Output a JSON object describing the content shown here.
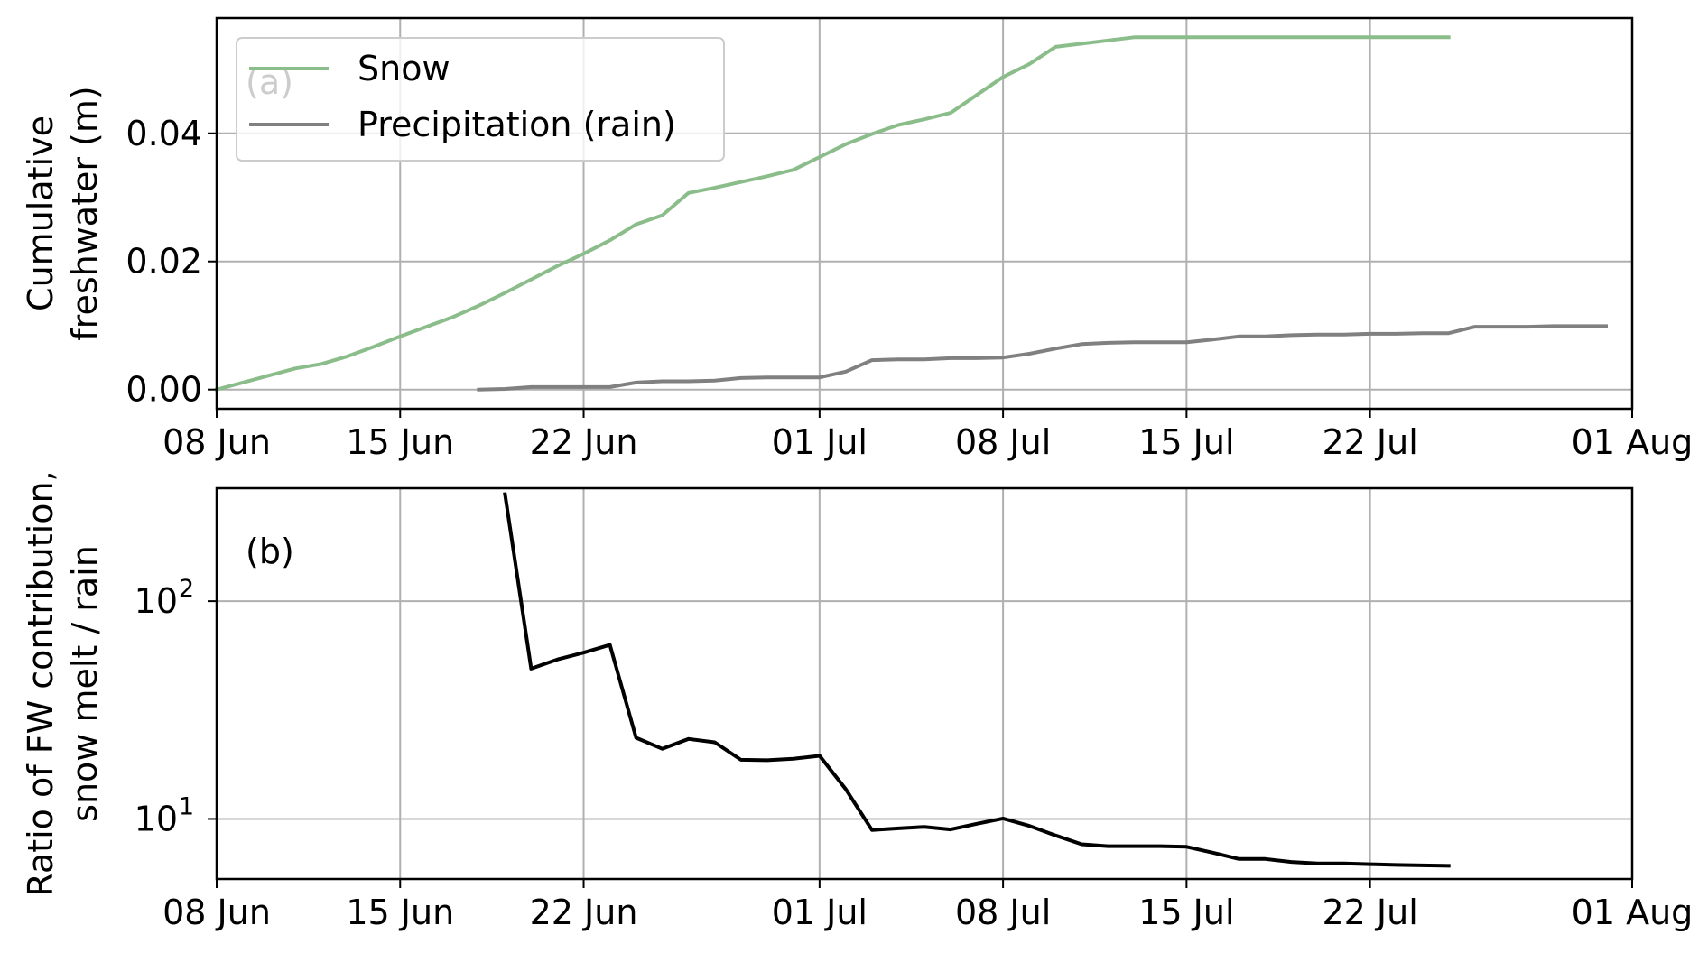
{
  "chart_data": [
    {
      "type": "line",
      "panel_label": "(a)",
      "title": "",
      "xlabel": "",
      "ylabel_lines": [
        "Cumulative",
        "freshwater (m)"
      ],
      "xlim": [
        "2019-06-08",
        "2019-08-01"
      ],
      "ylim": [
        -0.003,
        0.058
      ],
      "x_ticks": [
        {
          "date": "2019-06-08",
          "label": "08 Jun"
        },
        {
          "date": "2019-06-15",
          "label": "15 Jun"
        },
        {
          "date": "2019-06-22",
          "label": "22 Jun"
        },
        {
          "date": "2019-07-01",
          "label": "01 Jul"
        },
        {
          "date": "2019-07-08",
          "label": "08 Jul"
        },
        {
          "date": "2019-07-15",
          "label": "15 Jul"
        },
        {
          "date": "2019-07-22",
          "label": "22 Jul"
        },
        {
          "date": "2019-08-01",
          "label": "01 Aug"
        }
      ],
      "y_ticks": [
        {
          "value": 0.0,
          "label": "0.00"
        },
        {
          "value": 0.02,
          "label": "0.02"
        },
        {
          "value": 0.04,
          "label": "0.04"
        }
      ],
      "grid": true,
      "legend_position": "top-left",
      "series": [
        {
          "name": "Snow",
          "color": "#8bbd8b",
          "points": [
            [
              "2019-06-08",
              0.0
            ],
            [
              "2019-06-09",
              0.0011
            ],
            [
              "2019-06-10",
              0.0022
            ],
            [
              "2019-06-11",
              0.0033
            ],
            [
              "2019-06-12",
              0.004
            ],
            [
              "2019-06-13",
              0.0052
            ],
            [
              "2019-06-14",
              0.0067
            ],
            [
              "2019-06-15",
              0.0083
            ],
            [
              "2019-06-16",
              0.0098
            ],
            [
              "2019-06-17",
              0.0113
            ],
            [
              "2019-06-18",
              0.0131
            ],
            [
              "2019-06-19",
              0.0151
            ],
            [
              "2019-06-20",
              0.0172
            ],
            [
              "2019-06-21",
              0.0193
            ],
            [
              "2019-06-22",
              0.0212
            ],
            [
              "2019-06-23",
              0.0233
            ],
            [
              "2019-06-24",
              0.0258
            ],
            [
              "2019-06-25",
              0.0272
            ],
            [
              "2019-06-26",
              0.0307
            ],
            [
              "2019-06-27",
              0.0315
            ],
            [
              "2019-06-28",
              0.0324
            ],
            [
              "2019-06-29",
              0.0333
            ],
            [
              "2019-06-30",
              0.0343
            ],
            [
              "2019-07-01",
              0.0363
            ],
            [
              "2019-07-02",
              0.0383
            ],
            [
              "2019-07-03",
              0.0399
            ],
            [
              "2019-07-04",
              0.0413
            ],
            [
              "2019-07-05",
              0.0422
            ],
            [
              "2019-07-06",
              0.0432
            ],
            [
              "2019-07-07",
              0.046
            ],
            [
              "2019-07-08",
              0.0488
            ],
            [
              "2019-07-09",
              0.0508
            ],
            [
              "2019-07-10",
              0.0535
            ],
            [
              "2019-07-11",
              0.054
            ],
            [
              "2019-07-12",
              0.0545
            ],
            [
              "2019-07-13",
              0.055
            ],
            [
              "2019-07-14",
              0.055
            ],
            [
              "2019-07-15",
              0.055
            ],
            [
              "2019-07-16",
              0.055
            ],
            [
              "2019-07-17",
              0.055
            ],
            [
              "2019-07-18",
              0.055
            ],
            [
              "2019-07-19",
              0.055
            ],
            [
              "2019-07-20",
              0.055
            ],
            [
              "2019-07-21",
              0.055
            ],
            [
              "2019-07-22",
              0.055
            ],
            [
              "2019-07-23",
              0.055
            ],
            [
              "2019-07-24",
              0.055
            ],
            [
              "2019-07-25",
              0.055
            ]
          ]
        },
        {
          "name": "Precipitation (rain)",
          "color": "#808080",
          "points": [
            [
              "2019-06-18",
              0.0
            ],
            [
              "2019-06-19",
              0.0001
            ],
            [
              "2019-06-20",
              0.0004
            ],
            [
              "2019-06-21",
              0.0004
            ],
            [
              "2019-06-22",
              0.0004
            ],
            [
              "2019-06-23",
              0.0004
            ],
            [
              "2019-06-24",
              0.0011
            ],
            [
              "2019-06-25",
              0.0013
            ],
            [
              "2019-06-26",
              0.0013
            ],
            [
              "2019-06-27",
              0.0014
            ],
            [
              "2019-06-28",
              0.0018
            ],
            [
              "2019-06-29",
              0.0019
            ],
            [
              "2019-06-30",
              0.0019
            ],
            [
              "2019-07-01",
              0.0019
            ],
            [
              "2019-07-02",
              0.0028
            ],
            [
              "2019-07-03",
              0.0046
            ],
            [
              "2019-07-04",
              0.0047
            ],
            [
              "2019-07-05",
              0.0047
            ],
            [
              "2019-07-06",
              0.0049
            ],
            [
              "2019-07-07",
              0.0049
            ],
            [
              "2019-07-08",
              0.005
            ],
            [
              "2019-07-09",
              0.0056
            ],
            [
              "2019-07-10",
              0.0064
            ],
            [
              "2019-07-11",
              0.0071
            ],
            [
              "2019-07-12",
              0.0073
            ],
            [
              "2019-07-13",
              0.0074
            ],
            [
              "2019-07-14",
              0.0074
            ],
            [
              "2019-07-15",
              0.0074
            ],
            [
              "2019-07-16",
              0.0078
            ],
            [
              "2019-07-17",
              0.0083
            ],
            [
              "2019-07-18",
              0.0083
            ],
            [
              "2019-07-19",
              0.0085
            ],
            [
              "2019-07-20",
              0.0086
            ],
            [
              "2019-07-21",
              0.0086
            ],
            [
              "2019-07-22",
              0.0087
            ],
            [
              "2019-07-23",
              0.0087
            ],
            [
              "2019-07-24",
              0.0088
            ],
            [
              "2019-07-25",
              0.0088
            ],
            [
              "2019-07-26",
              0.0098
            ],
            [
              "2019-07-27",
              0.0098
            ],
            [
              "2019-07-28",
              0.0098
            ],
            [
              "2019-07-29",
              0.0099
            ],
            [
              "2019-07-30",
              0.0099
            ],
            [
              "2019-07-31",
              0.0099
            ]
          ]
        }
      ]
    },
    {
      "type": "line",
      "panel_label": "(b)",
      "title": "",
      "xlabel": "",
      "ylabel_lines": [
        "Ratio of FW contribution,",
        "snow melt / rain"
      ],
      "y_scale": "log",
      "xlim": [
        "2019-06-08",
        "2019-08-01"
      ],
      "ylim": [
        5.3,
        330
      ],
      "x_ticks": [
        {
          "date": "2019-06-08",
          "label": "08 Jun"
        },
        {
          "date": "2019-06-15",
          "label": "15 Jun"
        },
        {
          "date": "2019-06-22",
          "label": "22 Jun"
        },
        {
          "date": "2019-07-01",
          "label": "01 Jul"
        },
        {
          "date": "2019-07-08",
          "label": "08 Jul"
        },
        {
          "date": "2019-07-15",
          "label": "15 Jul"
        },
        {
          "date": "2019-07-22",
          "label": "22 Jul"
        },
        {
          "date": "2019-08-01",
          "label": "01 Aug"
        }
      ],
      "y_ticks": [
        {
          "value": 10,
          "base": "10",
          "exp": "1"
        },
        {
          "value": 100,
          "base": "10",
          "exp": "2"
        }
      ],
      "grid": true,
      "series": [
        {
          "color": "#000000",
          "points": [
            [
              "2019-06-19",
              310
            ],
            [
              "2019-06-20",
              49
            ],
            [
              "2019-06-21",
              54
            ],
            [
              "2019-06-22",
              58
            ],
            [
              "2019-06-23",
              63
            ],
            [
              "2019-06-24",
              23.6
            ],
            [
              "2019-06-25",
              21
            ],
            [
              "2019-06-26",
              23.3
            ],
            [
              "2019-06-27",
              22.5
            ],
            [
              "2019-06-28",
              18.7
            ],
            [
              "2019-06-29",
              18.6
            ],
            [
              "2019-06-30",
              18.9
            ],
            [
              "2019-07-01",
              19.5
            ],
            [
              "2019-07-02",
              13.7
            ],
            [
              "2019-07-03",
              8.9
            ],
            [
              "2019-07-04",
              9.05
            ],
            [
              "2019-07-05",
              9.2
            ],
            [
              "2019-07-06",
              8.95
            ],
            [
              "2019-07-07",
              9.5
            ],
            [
              "2019-07-08",
              10.05
            ],
            [
              "2019-07-09",
              9.3
            ],
            [
              "2019-07-10",
              8.4
            ],
            [
              "2019-07-11",
              7.65
            ],
            [
              "2019-07-12",
              7.5
            ],
            [
              "2019-07-13",
              7.5
            ],
            [
              "2019-07-14",
              7.5
            ],
            [
              "2019-07-15",
              7.45
            ],
            [
              "2019-07-16",
              7.0
            ],
            [
              "2019-07-17",
              6.55
            ],
            [
              "2019-07-18",
              6.55
            ],
            [
              "2019-07-19",
              6.35
            ],
            [
              "2019-07-20",
              6.25
            ],
            [
              "2019-07-21",
              6.25
            ],
            [
              "2019-07-22",
              6.2
            ],
            [
              "2019-07-23",
              6.15
            ],
            [
              "2019-07-24",
              6.12
            ],
            [
              "2019-07-25",
              6.1
            ]
          ]
        }
      ]
    }
  ]
}
